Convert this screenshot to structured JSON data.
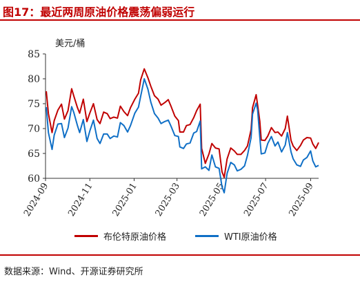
{
  "figure": {
    "title": "图17：最近两周原油价格震荡偏弱运行",
    "source": "数据来源：Wind、开源证券研究所"
  },
  "colors": {
    "brent": "#c00000",
    "wti": "#0f6fc6",
    "accent": "#c00000"
  },
  "chart_data": {
    "type": "line",
    "ylabel": "美元/桶",
    "ylim": [
      60,
      85
    ],
    "yticks": [
      60,
      65,
      70,
      75,
      80,
      85
    ],
    "xlim": [
      "2024-09-01",
      "2025-09-12"
    ],
    "xticks": [
      "2024-09",
      "2024-11",
      "2025-01",
      "2025-03",
      "2025-05",
      "2025-07",
      "2025-09"
    ],
    "grid": false,
    "legend_position": "bottom",
    "series": [
      {
        "name": "布伦特原油价格",
        "color": "#c00000",
        "x": [
          "2024-09-02",
          "2024-09-05",
          "2024-09-10",
          "2024-09-13",
          "2024-09-18",
          "2024-09-23",
          "2024-09-27",
          "2024-10-02",
          "2024-10-07",
          "2024-10-10",
          "2024-10-15",
          "2024-10-18",
          "2024-10-23",
          "2024-10-28",
          "2024-11-01",
          "2024-11-06",
          "2024-11-11",
          "2024-11-15",
          "2024-11-20",
          "2024-11-25",
          "2024-11-29",
          "2024-12-04",
          "2024-12-09",
          "2024-12-13",
          "2024-12-18",
          "2024-12-23",
          "2024-12-27",
          "2025-01-02",
          "2025-01-07",
          "2025-01-10",
          "2025-01-15",
          "2025-01-20",
          "2025-01-24",
          "2025-01-29",
          "2025-02-03",
          "2025-02-07",
          "2025-02-12",
          "2025-02-17",
          "2025-02-21",
          "2025-02-26",
          "2025-03-03",
          "2025-03-05",
          "2025-03-10",
          "2025-03-14",
          "2025-03-19",
          "2025-03-24",
          "2025-03-28",
          "2025-04-02",
          "2025-04-04",
          "2025-04-09",
          "2025-04-14",
          "2025-04-18",
          "2025-04-23",
          "2025-04-28",
          "2025-05-02",
          "2025-05-05",
          "2025-05-09",
          "2025-05-14",
          "2025-05-19",
          "2025-05-23",
          "2025-05-28",
          "2025-06-02",
          "2025-06-06",
          "2025-06-11",
          "2025-06-13",
          "2025-06-18",
          "2025-06-20",
          "2025-06-23",
          "2025-06-25",
          "2025-06-30",
          "2025-07-04",
          "2025-07-09",
          "2025-07-14",
          "2025-07-18",
          "2025-07-23",
          "2025-07-28",
          "2025-07-31",
          "2025-08-05",
          "2025-08-08",
          "2025-08-13",
          "2025-08-18",
          "2025-08-22",
          "2025-08-27",
          "2025-09-01",
          "2025-09-04",
          "2025-09-08",
          "2025-09-12"
        ],
        "values": [
          77.5,
          73.0,
          69.2,
          71.6,
          73.7,
          74.9,
          71.9,
          73.6,
          78.0,
          76.5,
          74.2,
          73.1,
          75.9,
          71.4,
          73.1,
          75.0,
          71.8,
          71.0,
          73.3,
          73.0,
          72.0,
          72.3,
          72.1,
          74.5,
          73.4,
          72.6,
          74.2,
          75.9,
          77.1,
          79.8,
          82.0,
          80.2,
          78.5,
          76.6,
          75.9,
          74.7,
          75.2,
          75.8,
          74.4,
          72.5,
          71.6,
          69.3,
          69.3,
          70.6,
          70.8,
          72.2,
          73.6,
          74.9,
          66.0,
          63.0,
          64.9,
          67.0,
          66.1,
          65.9,
          61.3,
          60.2,
          63.9,
          66.1,
          65.5,
          64.8,
          64.8,
          65.6,
          66.5,
          69.8,
          74.2,
          76.8,
          74.8,
          71.5,
          67.7,
          67.6,
          68.5,
          70.2,
          69.2,
          69.3,
          68.5,
          70.0,
          72.5,
          67.6,
          66.5,
          65.6,
          66.6,
          67.7,
          68.2,
          68.1,
          66.9,
          66.0,
          67.2
        ]
      },
      {
        "name": "WTI原油价格",
        "color": "#0f6fc6",
        "x": [
          "2024-09-02",
          "2024-09-05",
          "2024-09-10",
          "2024-09-13",
          "2024-09-18",
          "2024-09-23",
          "2024-09-27",
          "2024-10-02",
          "2024-10-07",
          "2024-10-10",
          "2024-10-15",
          "2024-10-18",
          "2024-10-23",
          "2024-10-28",
          "2024-11-01",
          "2024-11-06",
          "2024-11-11",
          "2024-11-15",
          "2024-11-20",
          "2024-11-25",
          "2024-11-29",
          "2024-12-04",
          "2024-12-09",
          "2024-12-13",
          "2024-12-18",
          "2024-12-23",
          "2024-12-27",
          "2025-01-02",
          "2025-01-07",
          "2025-01-10",
          "2025-01-15",
          "2025-01-20",
          "2025-01-24",
          "2025-01-29",
          "2025-02-03",
          "2025-02-07",
          "2025-02-12",
          "2025-02-17",
          "2025-02-21",
          "2025-02-26",
          "2025-03-03",
          "2025-03-05",
          "2025-03-10",
          "2025-03-14",
          "2025-03-19",
          "2025-03-24",
          "2025-03-28",
          "2025-04-02",
          "2025-04-04",
          "2025-04-09",
          "2025-04-14",
          "2025-04-18",
          "2025-04-23",
          "2025-04-28",
          "2025-05-02",
          "2025-05-05",
          "2025-05-09",
          "2025-05-14",
          "2025-05-19",
          "2025-05-23",
          "2025-05-28",
          "2025-06-02",
          "2025-06-06",
          "2025-06-11",
          "2025-06-13",
          "2025-06-18",
          "2025-06-20",
          "2025-06-23",
          "2025-06-25",
          "2025-06-30",
          "2025-07-04",
          "2025-07-09",
          "2025-07-14",
          "2025-07-18",
          "2025-07-23",
          "2025-07-28",
          "2025-07-31",
          "2025-08-05",
          "2025-08-08",
          "2025-08-13",
          "2025-08-18",
          "2025-08-22",
          "2025-08-27",
          "2025-09-01",
          "2025-09-04",
          "2025-09-08",
          "2025-09-12"
        ],
        "values": [
          74.3,
          69.2,
          65.8,
          68.7,
          70.9,
          71.0,
          68.2,
          70.1,
          74.4,
          73.2,
          70.6,
          69.2,
          71.8,
          67.4,
          69.5,
          71.7,
          68.0,
          67.0,
          68.9,
          68.9,
          68.0,
          68.5,
          68.3,
          71.2,
          70.6,
          69.3,
          70.6,
          73.1,
          74.3,
          76.5,
          80.0,
          77.9,
          75.3,
          73.0,
          72.1,
          71.0,
          71.4,
          71.7,
          70.4,
          68.6,
          68.4,
          66.3,
          66.0,
          66.9,
          67.1,
          69.1,
          69.4,
          71.5,
          61.9,
          62.3,
          61.6,
          64.7,
          62.3,
          62.0,
          58.3,
          57.1,
          61.0,
          63.2,
          62.7,
          61.5,
          61.8,
          62.5,
          64.6,
          68.2,
          72.9,
          75.1,
          73.8,
          68.3,
          64.9,
          65.1,
          67.0,
          68.4,
          66.5,
          67.3,
          65.3,
          66.7,
          69.2,
          65.3,
          63.9,
          62.7,
          62.4,
          63.7,
          64.2,
          65.5,
          63.5,
          62.3,
          62.6
        ]
      }
    ]
  }
}
